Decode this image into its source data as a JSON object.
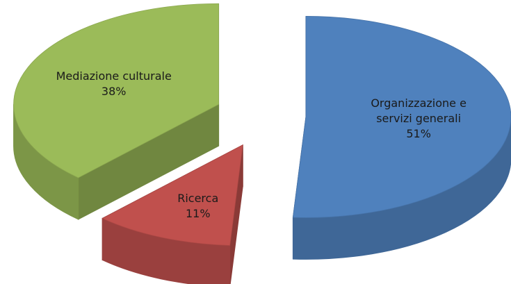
{
  "chart_data": {
    "type": "pie",
    "categories": [
      "Organizzazione e servizi generali",
      "Ricerca",
      "Mediazione culturale"
    ],
    "values": [
      51,
      11,
      38
    ],
    "value_labels": [
      "51%",
      "11%",
      "38%"
    ],
    "colors": [
      "#4f81bd",
      "#c0504d",
      "#9bbb59"
    ]
  }
}
